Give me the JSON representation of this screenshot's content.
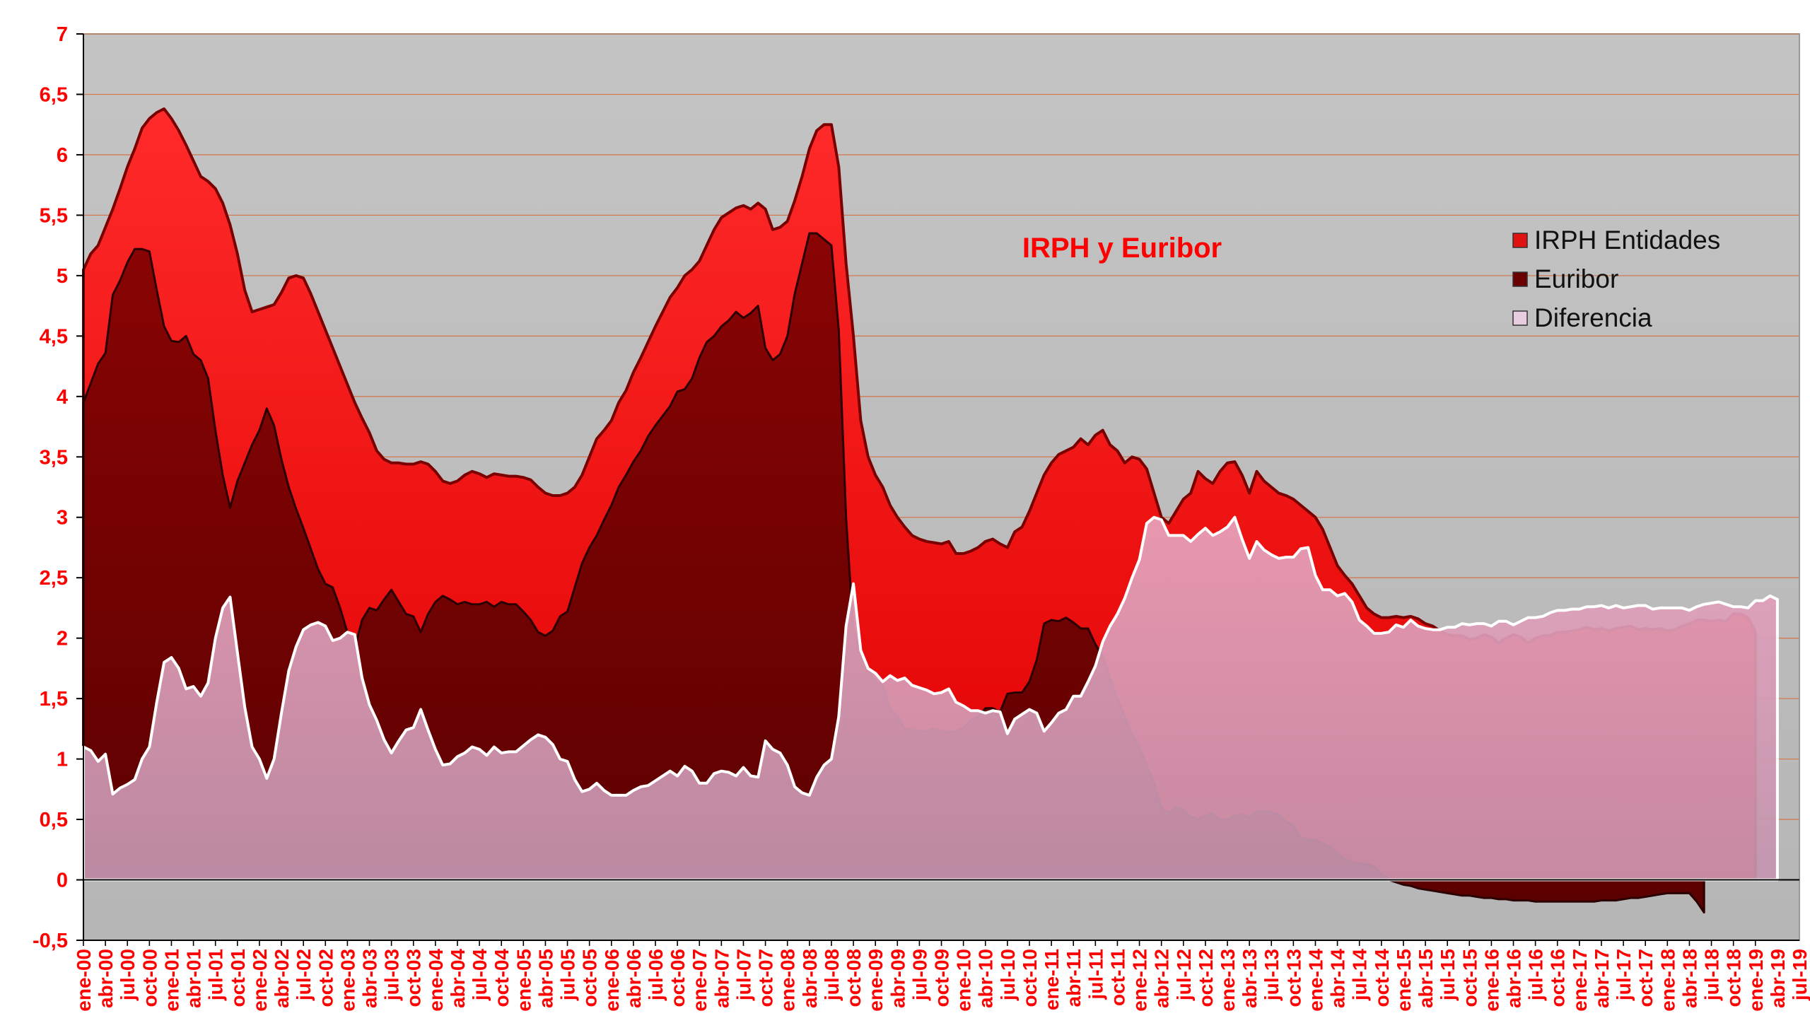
{
  "chart_data": {
    "type": "area",
    "title": "IRPH y Euribor",
    "xlabel": "",
    "ylabel": "",
    "ylim": [
      -0.5,
      7
    ],
    "yticks": [
      "-0,5",
      "0",
      "0,5",
      "1",
      "1,5",
      "2",
      "2,5",
      "3",
      "3,5",
      "4",
      "4,5",
      "5",
      "5,5",
      "6",
      "6,5",
      "7"
    ],
    "ytick_values": [
      -0.5,
      0,
      0.5,
      1,
      1.5,
      2,
      2.5,
      3,
      3.5,
      4,
      4.5,
      5,
      5.5,
      6,
      6.5,
      7
    ],
    "x_start": "ene-00",
    "xticks": [
      "ene-00",
      "abr-00",
      "jul-00",
      "oct-00",
      "ene-01",
      "abr-01",
      "jul-01",
      "oct-01",
      "ene-02",
      "abr-02",
      "jul-02",
      "oct-02",
      "ene-03",
      "abr-03",
      "jul-03",
      "oct-03",
      "ene-04",
      "abr-04",
      "jul-04",
      "oct-04",
      "ene-05",
      "abr-05",
      "jul-05",
      "oct-05",
      "ene-06",
      "abr-06",
      "jul-06",
      "oct-06",
      "ene-07",
      "abr-07",
      "jul-07",
      "oct-07",
      "ene-08",
      "abr-08",
      "jul-08",
      "oct-08",
      "ene-09",
      "abr-09",
      "jul-09",
      "oct-09",
      "ene-10",
      "abr-10",
      "jul-10",
      "oct-10",
      "ene-11",
      "abr-11",
      "jul-11",
      "oct-11",
      "ene-12",
      "abr-12",
      "jul-12",
      "oct-12",
      "ene-13",
      "abr-13",
      "jul-13",
      "oct-13",
      "ene-14",
      "abr-14",
      "jul-14",
      "oct-14",
      "ene-15",
      "abr-15",
      "jul-15",
      "oct-15",
      "ene-16",
      "abr-16",
      "jul-16",
      "oct-16",
      "ene-17",
      "abr-17",
      "jul-17",
      "oct-17",
      "ene-18",
      "abr-18",
      "jul-18",
      "oct-18",
      "ene-19",
      "abr-19",
      "jul-19"
    ],
    "grid": true,
    "legend_position": "top-right",
    "series": [
      {
        "name": "IRPH Entidades",
        "color": "#ff1010",
        "values": [
          5.05,
          5.18,
          5.25,
          5.4,
          5.55,
          5.72,
          5.9,
          6.05,
          6.22,
          6.3,
          6.35,
          6.38,
          6.3,
          6.2,
          6.08,
          5.95,
          5.82,
          5.78,
          5.72,
          5.6,
          5.42,
          5.18,
          4.88,
          4.7,
          4.72,
          4.74,
          4.76,
          4.86,
          4.98,
          5.0,
          4.98,
          4.85,
          4.7,
          4.55,
          4.4,
          4.25,
          4.1,
          3.95,
          3.82,
          3.7,
          3.55,
          3.48,
          3.45,
          3.45,
          3.44,
          3.44,
          3.46,
          3.44,
          3.38,
          3.3,
          3.28,
          3.3,
          3.35,
          3.38,
          3.36,
          3.33,
          3.36,
          3.35,
          3.34,
          3.34,
          3.33,
          3.31,
          3.25,
          3.2,
          3.18,
          3.18,
          3.2,
          3.25,
          3.35,
          3.5,
          3.65,
          3.72,
          3.8,
          3.95,
          4.05,
          4.2,
          4.32,
          4.45,
          4.58,
          4.7,
          4.82,
          4.9,
          5.0,
          5.05,
          5.12,
          5.25,
          5.38,
          5.48,
          5.52,
          5.56,
          5.58,
          5.55,
          5.6,
          5.55,
          5.38,
          5.4,
          5.45,
          5.62,
          5.82,
          6.05,
          6.2,
          6.25,
          6.25,
          5.9,
          5.1,
          4.5,
          3.8,
          3.5,
          3.35,
          3.25,
          3.1,
          3.0,
          2.92,
          2.85,
          2.82,
          2.8,
          2.79,
          2.78,
          2.8,
          2.7,
          2.7,
          2.72,
          2.75,
          2.8,
          2.82,
          2.78,
          2.75,
          2.88,
          2.92,
          3.05,
          3.2,
          3.35,
          3.45,
          3.52,
          3.55,
          3.58,
          3.65,
          3.6,
          3.68,
          3.72,
          3.6,
          3.55,
          3.45,
          3.5,
          3.48,
          3.4,
          3.2,
          3.0,
          2.95,
          3.05,
          3.15,
          3.2,
          3.38,
          3.32,
          3.28,
          3.38,
          3.45,
          3.46,
          3.35,
          3.2,
          3.38,
          3.3,
          3.25,
          3.2,
          3.18,
          3.15,
          3.1,
          3.05,
          3.0,
          2.9,
          2.75,
          2.6,
          2.52,
          2.45,
          2.35,
          2.25,
          2.2,
          2.17,
          2.17,
          2.18,
          2.17,
          2.18,
          2.16,
          2.12,
          2.1,
          2.06,
          2.03,
          2.02,
          2.02,
          1.99,
          2.0,
          2.03,
          2.01,
          1.96,
          2.0,
          2.03,
          2.01,
          1.96,
          2.0,
          2.02,
          2.02,
          2.05,
          2.05,
          2.06,
          2.07,
          2.09,
          2.07,
          2.08,
          2.06,
          2.08,
          2.09,
          2.1,
          2.07,
          2.08,
          2.07,
          2.08,
          2.06,
          2.07,
          2.1,
          2.12,
          2.15,
          2.15,
          2.14,
          2.15,
          2.14,
          2.2,
          2.2,
          2.17,
          2.05
        ]
      },
      {
        "name": "Euribor",
        "color": "#7a0000",
        "values": [
          3.95,
          4.11,
          4.27,
          4.36,
          4.84,
          4.96,
          5.11,
          5.22,
          5.22,
          5.2,
          4.88,
          4.58,
          4.46,
          4.45,
          4.5,
          4.35,
          4.3,
          4.15,
          3.72,
          3.35,
          3.08,
          3.3,
          3.45,
          3.6,
          3.72,
          3.9,
          3.76,
          3.48,
          3.25,
          3.07,
          2.91,
          2.74,
          2.57,
          2.45,
          2.42,
          2.25,
          2.05,
          1.92,
          2.15,
          2.25,
          2.23,
          2.32,
          2.4,
          2.3,
          2.2,
          2.18,
          2.05,
          2.2,
          2.3,
          2.35,
          2.32,
          2.28,
          2.3,
          2.28,
          2.28,
          2.3,
          2.26,
          2.3,
          2.28,
          2.28,
          2.22,
          2.15,
          2.05,
          2.02,
          2.06,
          2.18,
          2.22,
          2.42,
          2.62,
          2.75,
          2.85,
          2.98,
          3.1,
          3.25,
          3.35,
          3.46,
          3.55,
          3.67,
          3.76,
          3.84,
          3.92,
          4.04,
          4.06,
          4.15,
          4.32,
          4.45,
          4.5,
          4.58,
          4.63,
          4.7,
          4.65,
          4.69,
          4.75,
          4.4,
          4.3,
          4.35,
          4.5,
          4.85,
          5.1,
          5.35,
          5.35,
          5.3,
          5.25,
          4.55,
          3.0,
          2.05,
          1.9,
          1.75,
          1.64,
          1.61,
          1.41,
          1.35,
          1.25,
          1.24,
          1.23,
          1.23,
          1.25,
          1.23,
          1.22,
          1.23,
          1.26,
          1.32,
          1.35,
          1.42,
          1.42,
          1.39,
          1.54,
          1.55,
          1.55,
          1.64,
          1.82,
          2.12,
          2.15,
          2.14,
          2.17,
          2.13,
          2.08,
          2.08,
          1.95,
          1.85,
          1.67,
          1.5,
          1.35,
          1.2,
          1.1,
          0.95,
          0.8,
          0.6,
          0.55,
          0.6,
          0.58,
          0.52,
          0.5,
          0.53,
          0.55,
          0.49,
          0.5,
          0.53,
          0.54,
          0.52,
          0.56,
          0.57,
          0.56,
          0.54,
          0.48,
          0.45,
          0.35,
          0.33,
          0.33,
          0.3,
          0.27,
          0.22,
          0.17,
          0.15,
          0.13,
          0.13,
          0.11,
          0.05,
          0.0,
          -0.02,
          -0.04,
          -0.05,
          -0.07,
          -0.08,
          -0.09,
          -0.1,
          -0.11,
          -0.12,
          -0.13,
          -0.13,
          -0.14,
          -0.15,
          -0.15,
          -0.16,
          -0.16,
          -0.17,
          -0.17,
          -0.17,
          -0.18,
          -0.18,
          -0.18,
          -0.18,
          -0.18,
          -0.18,
          -0.18,
          -0.18,
          -0.18,
          -0.17,
          -0.17,
          -0.17,
          -0.16,
          -0.15,
          -0.15,
          -0.14,
          -0.13,
          -0.12,
          -0.11,
          -0.11,
          -0.11,
          -0.11,
          -0.18,
          -0.27
        ]
      },
      {
        "name": "Diferencia",
        "color": "#e0b8d4",
        "values": [
          1.1,
          1.07,
          0.98,
          1.04,
          0.71,
          0.76,
          0.79,
          0.83,
          1.0,
          1.1,
          1.47,
          1.8,
          1.84,
          1.75,
          1.58,
          1.6,
          1.52,
          1.63,
          2.0,
          2.25,
          2.34,
          1.88,
          1.43,
          1.1,
          1.0,
          0.84,
          1.0,
          1.38,
          1.73,
          1.93,
          2.07,
          2.11,
          2.13,
          2.1,
          1.98,
          2.0,
          2.05,
          2.03,
          1.67,
          1.45,
          1.32,
          1.16,
          1.05,
          1.15,
          1.24,
          1.26,
          1.41,
          1.24,
          1.08,
          0.95,
          0.96,
          1.02,
          1.05,
          1.1,
          1.08,
          1.03,
          1.1,
          1.05,
          1.06,
          1.06,
          1.11,
          1.16,
          1.2,
          1.18,
          1.12,
          1.0,
          0.98,
          0.83,
          0.73,
          0.75,
          0.8,
          0.74,
          0.7,
          0.7,
          0.7,
          0.74,
          0.77,
          0.78,
          0.82,
          0.86,
          0.9,
          0.86,
          0.94,
          0.9,
          0.8,
          0.8,
          0.88,
          0.9,
          0.89,
          0.86,
          0.93,
          0.86,
          0.85,
          1.15,
          1.08,
          1.05,
          0.95,
          0.77,
          0.72,
          0.7,
          0.85,
          0.95,
          1.0,
          1.35,
          2.1,
          2.45,
          1.9,
          1.75,
          1.71,
          1.64,
          1.69,
          1.65,
          1.67,
          1.61,
          1.59,
          1.57,
          1.54,
          1.55,
          1.58,
          1.47,
          1.44,
          1.4,
          1.4,
          1.38,
          1.4,
          1.39,
          1.21,
          1.33,
          1.37,
          1.41,
          1.38,
          1.23,
          1.3,
          1.38,
          1.41,
          1.52,
          1.52,
          1.64,
          1.77,
          1.97,
          2.1,
          2.2,
          2.33,
          2.5,
          2.65,
          2.95,
          3.0,
          2.98,
          2.85,
          2.85,
          2.85,
          2.8,
          2.86,
          2.91,
          2.85,
          2.88,
          2.92,
          3.0,
          2.82,
          2.66,
          2.8,
          2.73,
          2.69,
          2.66,
          2.67,
          2.67,
          2.74,
          2.75,
          2.52,
          2.4,
          2.4,
          2.35,
          2.37,
          2.3,
          2.15,
          2.1,
          2.04,
          2.04,
          2.05,
          2.11,
          2.09,
          2.15,
          2.1,
          2.08,
          2.07,
          2.07,
          2.09,
          2.09,
          2.12,
          2.11,
          2.12,
          2.12,
          2.1,
          2.14,
          2.14,
          2.11,
          2.14,
          2.17,
          2.17,
          2.18,
          2.21,
          2.23,
          2.23,
          2.24,
          2.24,
          2.26,
          2.26,
          2.27,
          2.25,
          2.27,
          2.25,
          2.26,
          2.27,
          2.27,
          2.24,
          2.25,
          2.25,
          2.25,
          2.25,
          2.23,
          2.26,
          2.28,
          2.29,
          2.3,
          2.28,
          2.26,
          2.26,
          2.25,
          2.31,
          2.31,
          2.35,
          2.32
        ]
      }
    ]
  }
}
